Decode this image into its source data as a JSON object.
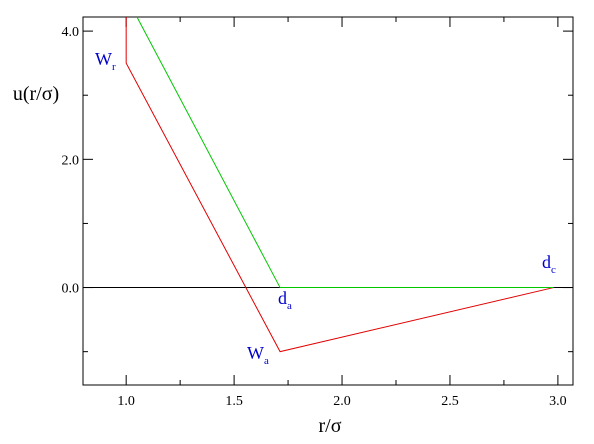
{
  "chart_data": {
    "type": "line",
    "xlabel": "r/σ",
    "ylabel": "u(r/σ)",
    "xlim": [
      0.8,
      3.07
    ],
    "ylim": [
      -1.52,
      4.22
    ],
    "xticks": [
      {
        "value": 1,
        "label": "1.0"
      },
      1.5,
      {
        "value": 2,
        "label": "2.0"
      },
      2.5,
      {
        "value": 3,
        "label": "3.0"
      }
    ],
    "yticks": [
      {
        "value": 0,
        "label": "0.0"
      },
      {
        "value": 2,
        "label": "2.0"
      },
      {
        "value": 4,
        "label": "4.0"
      }
    ],
    "xminor": [
      1.25,
      1.75,
      2.25,
      2.75
    ],
    "yminor": [
      -1,
      1,
      3
    ],
    "zero_line": true,
    "series": [
      {
        "color": "#e00000",
        "x": [
          1.0,
          1.0,
          1.713,
          2.98
        ],
        "values": [
          4.22,
          3.5,
          -1.0,
          0.0
        ]
      },
      {
        "color": "#00c800",
        "x": [
          1.05,
          1.713,
          2.98
        ],
        "values": [
          4.22,
          0.0,
          0.0
        ]
      }
    ],
    "annotation_color": "#0000cc",
    "annotations": [
      {
        "text": "W",
        "sub": "r"
      },
      {
        "text": "d",
        "sub": "a"
      },
      {
        "text": "W",
        "sub": "a"
      },
      {
        "text": "d",
        "sub": "c"
      }
    ]
  }
}
